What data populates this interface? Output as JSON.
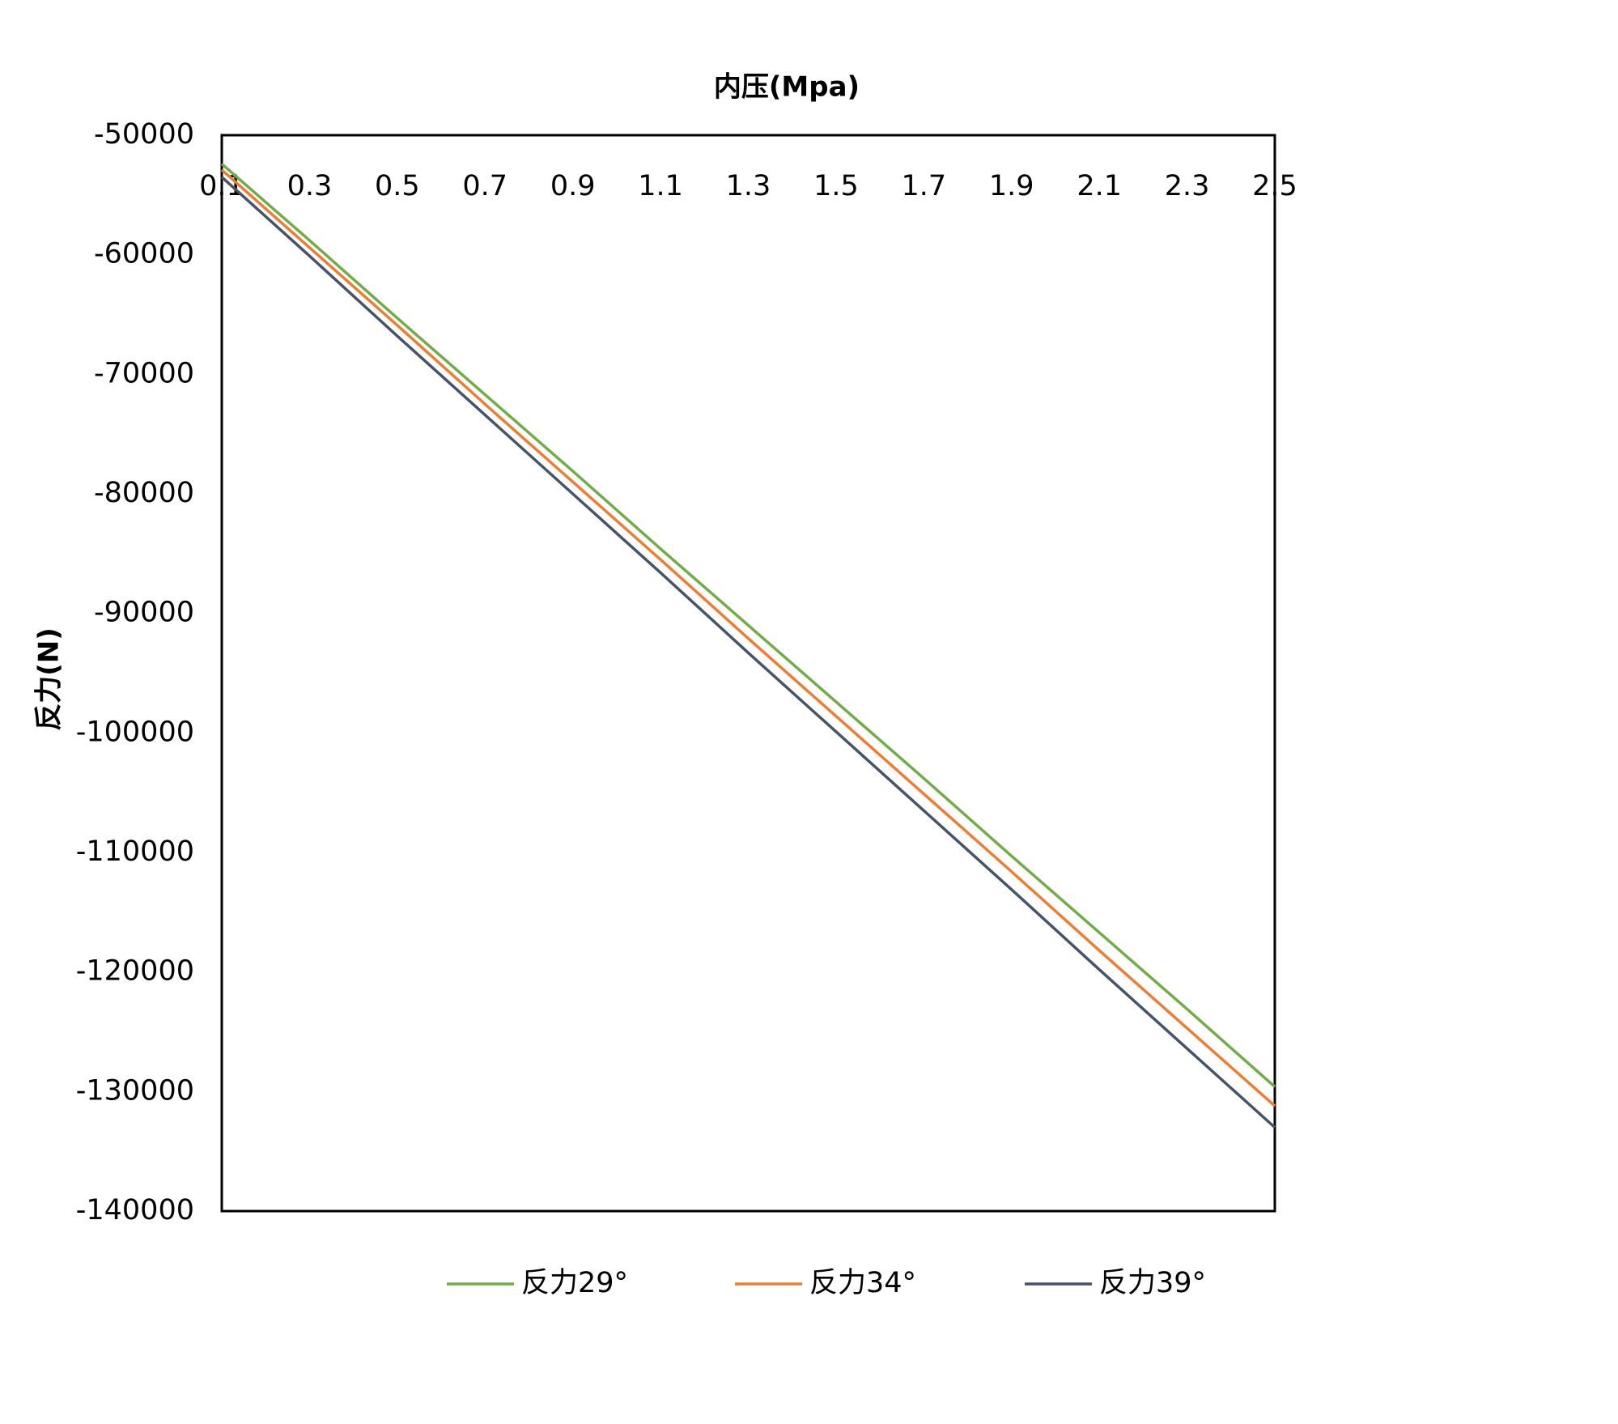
{
  "chart_data": {
    "type": "line",
    "x_label": "内压(Mpa)",
    "y_label": "反力(N)",
    "x": [
      0.1,
      0.3,
      0.5,
      0.7,
      0.9,
      1.1,
      1.3,
      1.5,
      1.7,
      1.9,
      2.1,
      2.3,
      2.5
    ],
    "series": [
      {
        "name": "反力29°",
        "color": "#70ad47",
        "values": [
          -52400,
          -58800,
          -65300,
          -71700,
          -78100,
          -84600,
          -91000,
          -97400,
          -103800,
          -110300,
          -116700,
          -123100,
          -129600
        ]
      },
      {
        "name": "反力34°",
        "color": "#ed7d31",
        "values": [
          -52900,
          -59400,
          -65900,
          -72500,
          -79000,
          -85500,
          -92100,
          -98600,
          -105100,
          -111600,
          -118200,
          -124700,
          -131200
        ]
      },
      {
        "name": "反力39°",
        "color": "#44546a",
        "values": [
          -53500,
          -60100,
          -66800,
          -73400,
          -80000,
          -86600,
          -93300,
          -99900,
          -106500,
          -113100,
          -119800,
          -126400,
          -133000
        ]
      }
    ],
    "xlim": [
      0.1,
      2.5
    ],
    "xticks": [
      0.1,
      0.3,
      0.5,
      0.7,
      0.9,
      1.1,
      1.3,
      1.5,
      1.7,
      1.9,
      2.1,
      2.3,
      2.5
    ],
    "ylim": [
      -140000,
      -50000
    ],
    "yticks": [
      -140000,
      -130000,
      -120000,
      -110000,
      -100000,
      -90000,
      -80000,
      -70000,
      -60000,
      -50000
    ],
    "grid": false,
    "legend": "bottom"
  }
}
